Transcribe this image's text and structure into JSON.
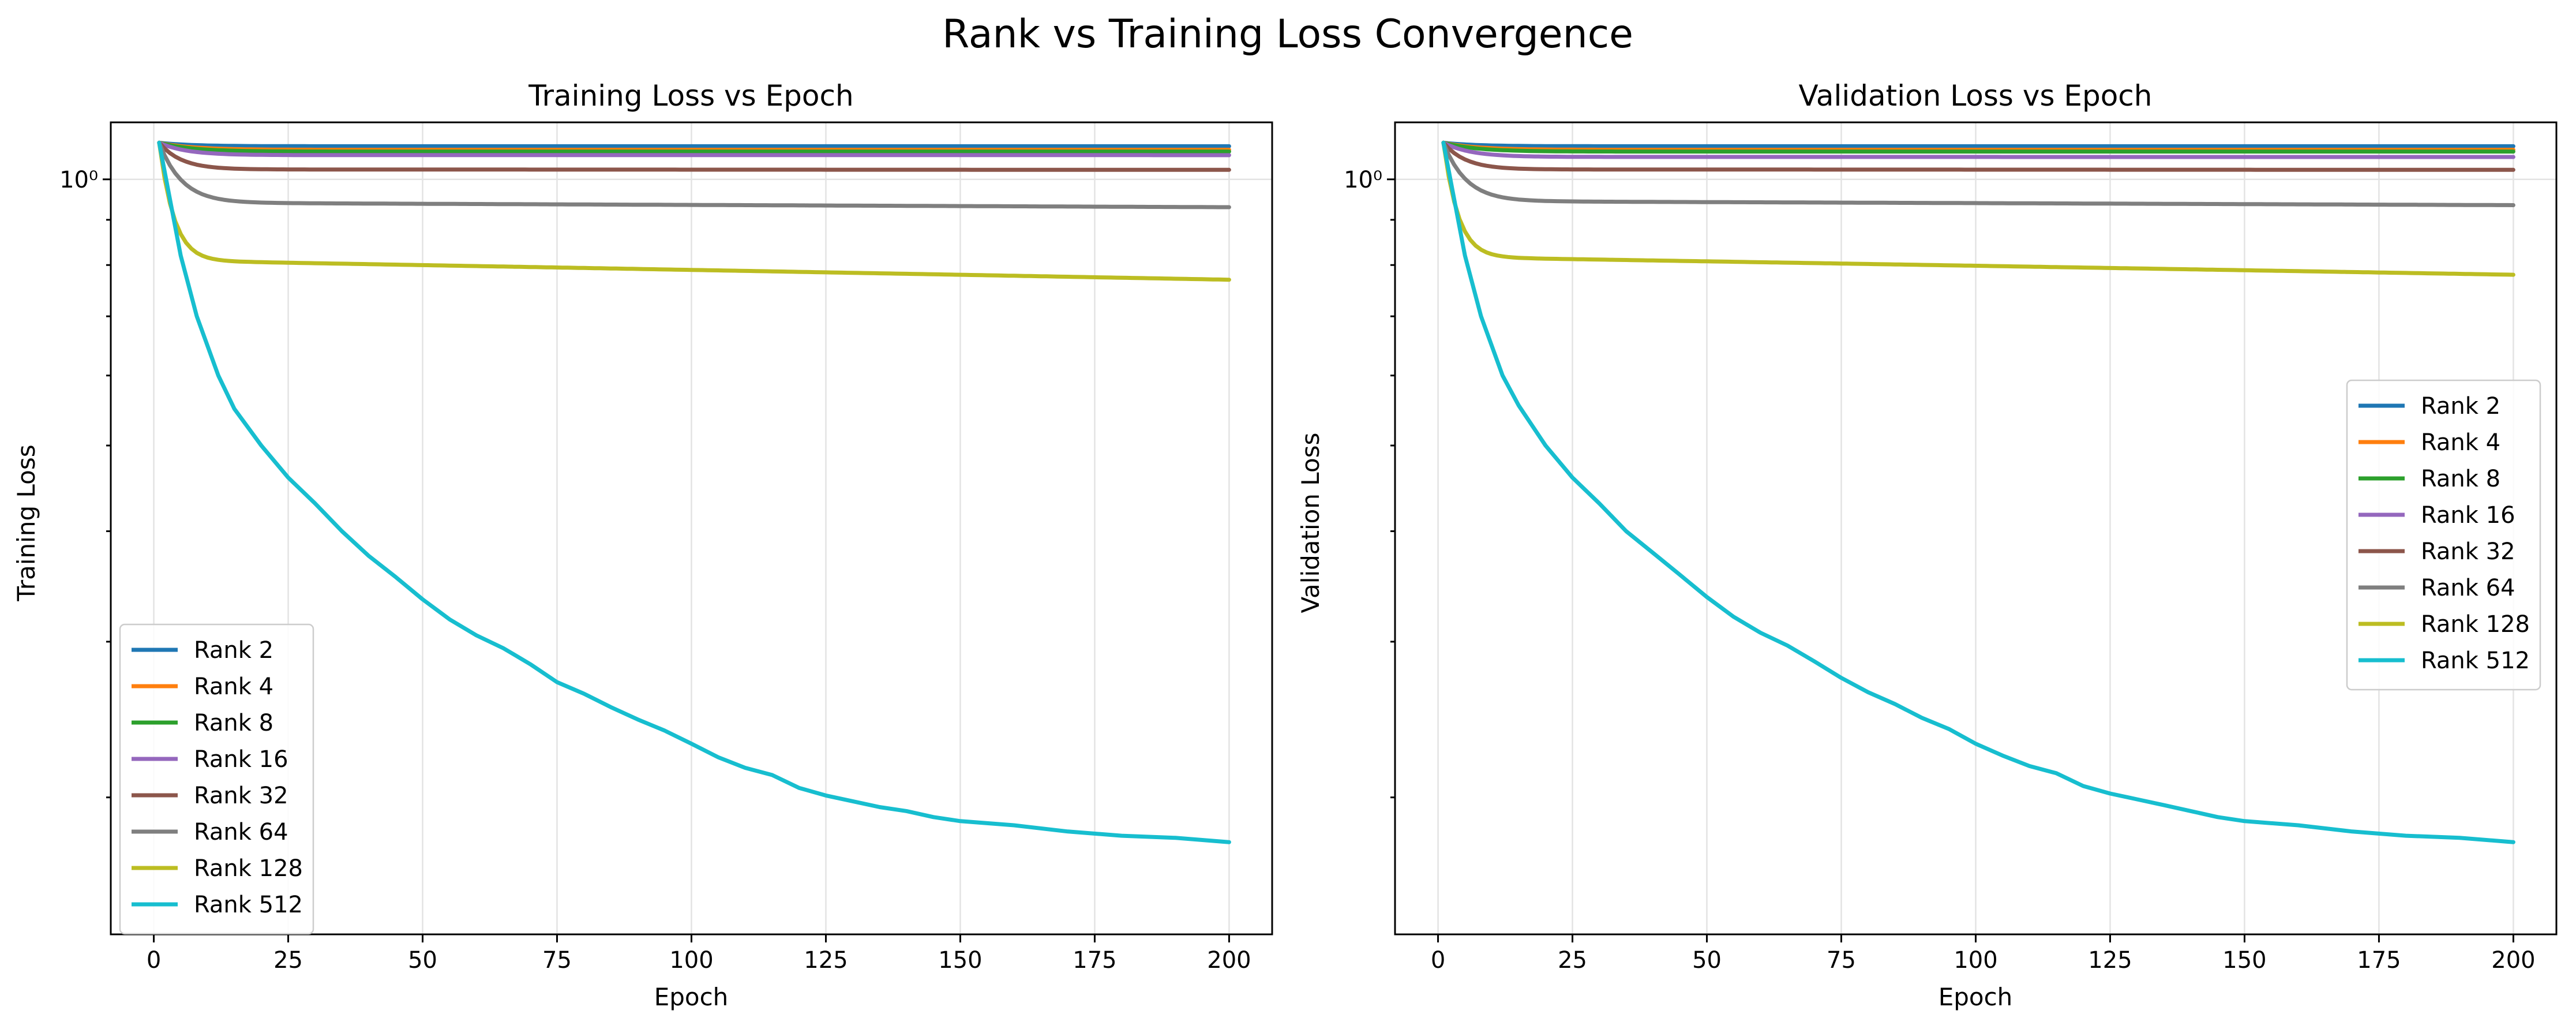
{
  "figure": {
    "title": "Rank vs Training Loss Convergence"
  },
  "colors": {
    "Rank 2": "#1f77b4",
    "Rank 4": "#ff7f0e",
    "Rank 8": "#2ca02c",
    "Rank 16": "#9467bd",
    "Rank 32": "#8c564b",
    "Rank 64": "#7f7f7f",
    "Rank 128": "#bcbd22",
    "Rank 512": "#17becf"
  },
  "chart_data": [
    {
      "type": "line",
      "title": "Training Loss vs Epoch",
      "xlabel": "Epoch",
      "ylabel": "Training Loss",
      "yscale": "log",
      "xlim": [
        -8,
        208
      ],
      "ylim": [
        0.14,
        1.16
      ],
      "xticks": [
        0,
        25,
        50,
        75,
        100,
        125,
        150,
        175,
        200
      ],
      "yticks": [
        {
          "value": 1.0,
          "label": "10⁰"
        }
      ],
      "grid": true,
      "legend_position": "lower-left",
      "series": [
        {
          "name": "Rank 2",
          "start": 1.1,
          "final": 1.09,
          "tau": 6,
          "slope": 0.0
        },
        {
          "name": "Rank 4",
          "start": 1.1,
          "final": 1.08,
          "tau": 6,
          "slope": 0.0
        },
        {
          "name": "Rank 8",
          "start": 1.1,
          "final": 1.075,
          "tau": 6,
          "slope": 0.0
        },
        {
          "name": "Rank 16",
          "start": 1.1,
          "final": 1.065,
          "tau": 5,
          "slope": 0.003
        },
        {
          "name": "Rank 32",
          "start": 1.1,
          "final": 1.025,
          "tau": 4,
          "slope": 0.015
        },
        {
          "name": "Rank 64",
          "start": 1.1,
          "final": 0.93,
          "tau": 4,
          "slope": 0.065
        },
        {
          "name": "Rank 128",
          "start": 1.1,
          "final": 0.77,
          "tau": 2.5,
          "slope": 0.12
        },
        {
          "name": "Rank 512",
          "points": [
            [
              1,
              1.1
            ],
            [
              3,
              0.95
            ],
            [
              5,
              0.82
            ],
            [
              8,
              0.7
            ],
            [
              12,
              0.6
            ],
            [
              15,
              0.55
            ],
            [
              20,
              0.5
            ],
            [
              25,
              0.46
            ],
            [
              30,
              0.43
            ],
            [
              35,
              0.4
            ],
            [
              40,
              0.375
            ],
            [
              45,
              0.355
            ],
            [
              50,
              0.335
            ],
            [
              55,
              0.318
            ],
            [
              60,
              0.305
            ],
            [
              65,
              0.295
            ],
            [
              70,
              0.283
            ],
            [
              75,
              0.27
            ],
            [
              80,
              0.262
            ],
            [
              85,
              0.253
            ],
            [
              90,
              0.245
            ],
            [
              95,
              0.238
            ],
            [
              100,
              0.23
            ],
            [
              105,
              0.222
            ],
            [
              110,
              0.216
            ],
            [
              115,
              0.212
            ],
            [
              120,
              0.205
            ],
            [
              125,
              0.201
            ],
            [
              130,
              0.198
            ],
            [
              135,
              0.195
            ],
            [
              140,
              0.193
            ],
            [
              145,
              0.19
            ],
            [
              150,
              0.188
            ],
            [
              160,
              0.186
            ],
            [
              170,
              0.183
            ],
            [
              180,
              0.181
            ],
            [
              190,
              0.18
            ],
            [
              200,
              0.178
            ]
          ]
        }
      ]
    },
    {
      "type": "line",
      "title": "Validation Loss vs Epoch",
      "xlabel": "Epoch",
      "ylabel": "Validation Loss",
      "yscale": "log",
      "xlim": [
        -8,
        208
      ],
      "ylim": [
        0.14,
        1.16
      ],
      "xticks": [
        0,
        25,
        50,
        75,
        100,
        125,
        150,
        175,
        200
      ],
      "yticks": [
        {
          "value": 1.0,
          "label": "10⁰"
        }
      ],
      "grid": true,
      "legend_position": "center-right",
      "series": [
        {
          "name": "Rank 2",
          "start": 1.1,
          "final": 1.09,
          "tau": 6,
          "slope": 0.0
        },
        {
          "name": "Rank 4",
          "start": 1.1,
          "final": 1.08,
          "tau": 6,
          "slope": 0.0
        },
        {
          "name": "Rank 8",
          "start": 1.1,
          "final": 1.075,
          "tau": 6,
          "slope": 0.0
        },
        {
          "name": "Rank 16",
          "start": 1.1,
          "final": 1.06,
          "tau": 5,
          "slope": 0.003
        },
        {
          "name": "Rank 32",
          "start": 1.1,
          "final": 1.025,
          "tau": 4,
          "slope": 0.015
        },
        {
          "name": "Rank 64",
          "start": 1.1,
          "final": 0.935,
          "tau": 4,
          "slope": 0.06
        },
        {
          "name": "Rank 128",
          "start": 1.1,
          "final": 0.78,
          "tau": 2.5,
          "slope": 0.115
        },
        {
          "name": "Rank 512",
          "points": [
            [
              1,
              1.1
            ],
            [
              3,
              0.95
            ],
            [
              5,
              0.82
            ],
            [
              8,
              0.7
            ],
            [
              12,
              0.6
            ],
            [
              15,
              0.555
            ],
            [
              20,
              0.5
            ],
            [
              25,
              0.46
            ],
            [
              30,
              0.43
            ],
            [
              35,
              0.4
            ],
            [
              40,
              0.378
            ],
            [
              45,
              0.357
            ],
            [
              50,
              0.337
            ],
            [
              55,
              0.32
            ],
            [
              60,
              0.307
            ],
            [
              65,
              0.297
            ],
            [
              70,
              0.285
            ],
            [
              75,
              0.273
            ],
            [
              80,
              0.263
            ],
            [
              85,
              0.255
            ],
            [
              90,
              0.246
            ],
            [
              95,
              0.239
            ],
            [
              100,
              0.23
            ],
            [
              105,
              0.223
            ],
            [
              110,
              0.217
            ],
            [
              115,
              0.213
            ],
            [
              120,
              0.206
            ],
            [
              125,
              0.202
            ],
            [
              130,
              0.199
            ],
            [
              135,
              0.196
            ],
            [
              140,
              0.193
            ],
            [
              145,
              0.19
            ],
            [
              150,
              0.188
            ],
            [
              160,
              0.186
            ],
            [
              170,
              0.183
            ],
            [
              180,
              0.181
            ],
            [
              190,
              0.18
            ],
            [
              200,
              0.178
            ]
          ]
        }
      ]
    }
  ]
}
